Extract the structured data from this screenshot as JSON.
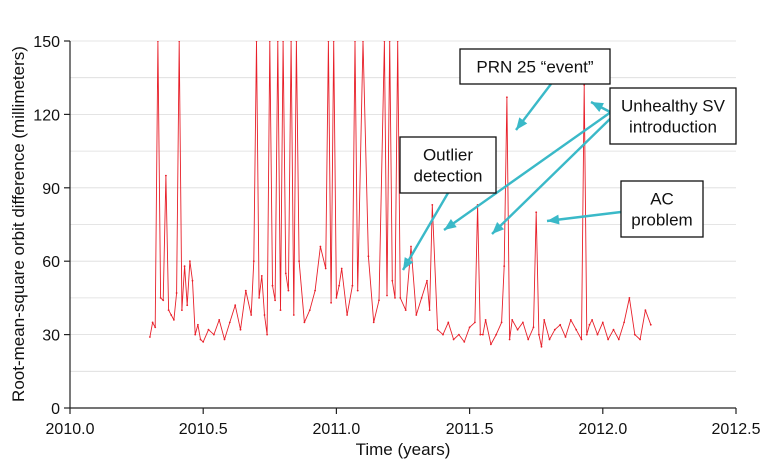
{
  "chart_data": {
    "type": "line",
    "title": "",
    "xlabel": "Time (years)",
    "ylabel": "Root-mean-square orbit difference (millimeters)",
    "xlim": [
      2010.0,
      2012.5
    ],
    "ylim": [
      0,
      150
    ],
    "xticks": [
      "2010.0",
      "2010.5",
      "2011.0",
      "2011.5",
      "2012.0",
      "2012.5"
    ],
    "yticks": [
      "0",
      "30",
      "60",
      "90",
      "120",
      "150"
    ],
    "grid": "horizontal",
    "series": [
      {
        "color": "#e8202a",
        "x": [
          2010.3,
          2010.31,
          2010.32,
          2010.33,
          2010.34,
          2010.35,
          2010.36,
          2010.37,
          2010.38,
          2010.39,
          2010.4,
          2010.41,
          2010.42,
          2010.43,
          2010.44,
          2010.45,
          2010.46,
          2010.47,
          2010.48,
          2010.49,
          2010.5,
          2010.52,
          2010.54,
          2010.56,
          2010.58,
          2010.6,
          2010.62,
          2010.64,
          2010.66,
          2010.68,
          2010.69,
          2010.7,
          2010.71,
          2010.72,
          2010.73,
          2010.74,
          2010.75,
          2010.76,
          2010.77,
          2010.78,
          2010.79,
          2010.8,
          2010.81,
          2010.82,
          2010.83,
          2010.84,
          2010.85,
          2010.86,
          2010.88,
          2010.9,
          2010.92,
          2010.94,
          2010.96,
          2010.97,
          2010.98,
          2010.99,
          2011.0,
          2011.01,
          2011.02,
          2011.04,
          2011.06,
          2011.07,
          2011.08,
          2011.1,
          2011.12,
          2011.14,
          2011.16,
          2011.18,
          2011.19,
          2011.2,
          2011.21,
          2011.22,
          2011.23,
          2011.24,
          2011.26,
          2011.28,
          2011.3,
          2011.32,
          2011.34,
          2011.35,
          2011.36,
          2011.38,
          2011.4,
          2011.42,
          2011.44,
          2011.46,
          2011.48,
          2011.5,
          2011.52,
          2011.53,
          2011.54,
          2011.55,
          2011.56,
          2011.58,
          2011.6,
          2011.62,
          2011.63,
          2011.64,
          2011.65,
          2011.66,
          2011.68,
          2011.7,
          2011.72,
          2011.74,
          2011.75,
          2011.76,
          2011.77,
          2011.78,
          2011.8,
          2011.82,
          2011.84,
          2011.86,
          2011.88,
          2011.9,
          2011.92,
          2011.93,
          2011.94,
          2011.95,
          2011.96,
          2011.98,
          2012.0,
          2012.02,
          2012.04,
          2012.06,
          2012.08,
          2012.1,
          2012.12,
          2012.14,
          2012.16,
          2012.18
        ],
        "y": [
          29,
          35,
          33,
          150,
          45,
          44,
          95,
          40,
          38,
          36,
          47,
          150,
          40,
          58,
          42,
          60,
          52,
          30,
          34,
          28,
          27,
          32,
          30,
          36,
          28,
          35,
          42,
          32,
          48,
          38,
          60,
          150,
          45,
          54,
          38,
          30,
          150,
          50,
          44,
          150,
          40,
          150,
          55,
          48,
          150,
          38,
          150,
          60,
          35,
          40,
          48,
          66,
          57,
          150,
          43,
          150,
          45,
          50,
          57,
          38,
          50,
          150,
          48,
          150,
          62,
          35,
          44,
          150,
          46,
          150,
          52,
          45,
          150,
          45,
          40,
          66,
          38,
          45,
          52,
          40,
          83,
          32,
          30,
          35,
          28,
          30,
          27,
          33,
          35,
          83,
          30,
          30,
          36,
          26,
          30,
          35,
          58,
          127,
          28,
          36,
          32,
          35,
          28,
          33,
          80,
          30,
          25,
          36,
          28,
          32,
          34,
          29,
          36,
          32,
          28,
          132,
          30,
          34,
          36,
          30,
          35,
          28,
          32,
          28,
          35,
          45,
          30,
          28,
          40,
          34
        ]
      }
    ],
    "annotations": [
      {
        "text": [
          "PRN 25 “event”"
        ]
      },
      {
        "text": [
          "Unhealthy SV",
          "introduction"
        ]
      },
      {
        "text": [
          "Outlier",
          "detection"
        ]
      },
      {
        "text": [
          "AC",
          "problem"
        ]
      }
    ]
  }
}
